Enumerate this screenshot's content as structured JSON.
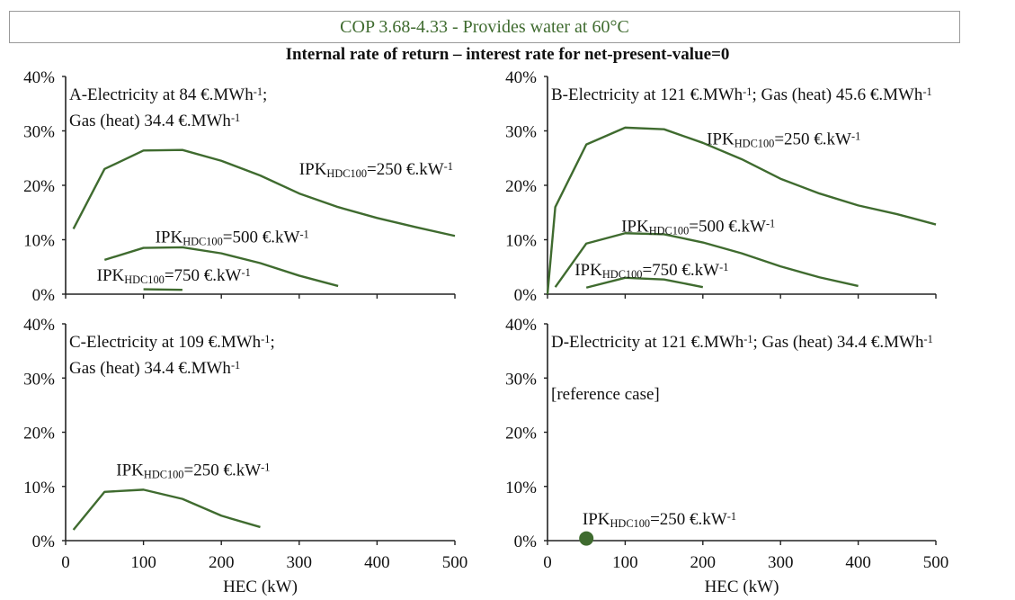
{
  "header": {
    "text": "COP 3.68-4.33 - Provides water at 60°C"
  },
  "title": "Internal rate of return – interest rate for net-present-value=0",
  "colors": {
    "series": "#3f6b2f",
    "axis": "#222222",
    "header_border": "#9a9a9a"
  },
  "chart_data": [
    {
      "type": "line",
      "panel": "A",
      "label_lines": [
        [
          {
            "t": "A-Electricity at 84 €.MWh"
          },
          {
            "t": "-1",
            "sup": true
          },
          {
            "t": ";"
          }
        ],
        [
          {
            "t": "Gas (heat) 34.4 €.MWh"
          },
          {
            "t": "-1",
            "sup": true
          }
        ]
      ],
      "xlabel": "",
      "xlim": [
        0,
        500
      ],
      "ylim": [
        0,
        0.4
      ],
      "yticks": [
        "0%",
        "10%",
        "20%",
        "30%",
        "40%"
      ],
      "xticks": [],
      "series": [
        {
          "name": "IPKHDC100=250 €.kW-1",
          "label_pos": [
            300,
            0.22
          ],
          "label_wrap": true,
          "x": [
            10,
            50,
            100,
            150,
            200,
            250,
            300,
            350,
            400,
            450,
            500
          ],
          "y": [
            0.12,
            0.23,
            0.264,
            0.265,
            0.245,
            0.218,
            0.185,
            0.16,
            0.14,
            0.123,
            0.107
          ]
        },
        {
          "name": "IPKHDC100=500 €.kW-1",
          "label_pos": [
            115,
            0.095
          ],
          "x": [
            50,
            100,
            150,
            200,
            250,
            300,
            350
          ],
          "y": [
            0.063,
            0.085,
            0.086,
            0.075,
            0.057,
            0.034,
            0.015
          ]
        },
        {
          "name": "IPKHDC100=750 €.kW-1",
          "label_pos": [
            40,
            0.025
          ],
          "label_clip": true,
          "x": [
            100,
            150
          ],
          "y": [
            0.009,
            0.008
          ]
        }
      ]
    },
    {
      "type": "line",
      "panel": "B",
      "label_lines": [
        [
          {
            "t": "B-Electricity at 121 €.MWh"
          },
          {
            "t": "-1",
            "sup": true
          },
          {
            "t": "; Gas (heat) 45.6 €.MWh"
          },
          {
            "t": "-1",
            "sup": true
          }
        ]
      ],
      "xlabel": "",
      "xlim": [
        0,
        500
      ],
      "ylim": [
        0,
        0.4
      ],
      "yticks": [
        "0%",
        "10%",
        "20%",
        "30%",
        "40%"
      ],
      "xticks": [],
      "series": [
        {
          "name": "IPKHDC100=250 €.kW-1",
          "label_pos": [
            205,
            0.275
          ],
          "x": [
            0,
            10,
            50,
            100,
            150,
            200,
            250,
            300,
            350,
            400,
            450,
            500
          ],
          "y": [
            0.0,
            0.16,
            0.275,
            0.306,
            0.303,
            0.278,
            0.248,
            0.212,
            0.185,
            0.163,
            0.147,
            0.128
          ]
        },
        {
          "name": "IPKHDC100=500 €.kW-1",
          "label_pos": [
            95,
            0.115
          ],
          "x": [
            10,
            50,
            100,
            150,
            200,
            250,
            300,
            350,
            400
          ],
          "y": [
            0.013,
            0.093,
            0.112,
            0.11,
            0.095,
            0.075,
            0.051,
            0.031,
            0.015
          ]
        },
        {
          "name": "IPKHDC100=750 €.kW-1",
          "label_pos": [
            35,
            0.035
          ],
          "x": [
            50,
            100,
            150,
            200
          ],
          "y": [
            0.012,
            0.03,
            0.027,
            0.013
          ]
        }
      ]
    },
    {
      "type": "line",
      "panel": "C",
      "label_lines": [
        [
          {
            "t": "C-Electricity at 109 €.MWh"
          },
          {
            "t": "-1",
            "sup": true
          },
          {
            "t": ";"
          }
        ],
        [
          {
            "t": "Gas (heat) 34.4 €.MWh"
          },
          {
            "t": "-1",
            "sup": true
          }
        ]
      ],
      "xlabel": "HEC (kW)",
      "xlim": [
        0,
        500
      ],
      "ylim": [
        0,
        0.4
      ],
      "yticks": [
        "0%",
        "10%",
        "20%",
        "30%",
        "40%"
      ],
      "xticks": [
        "0",
        "100",
        "200",
        "300",
        "400",
        "500"
      ],
      "series": [
        {
          "name": "IPKHDC100=250 €.kW-1",
          "label_pos": [
            65,
            0.12
          ],
          "x": [
            10,
            50,
            100,
            150,
            200,
            250
          ],
          "y": [
            0.02,
            0.09,
            0.094,
            0.077,
            0.046,
            0.025
          ]
        }
      ]
    },
    {
      "type": "scatter",
      "panel": "D",
      "label_lines": [
        [
          {
            "t": "D-Electricity at 121 €.MWh"
          },
          {
            "t": "-1",
            "sup": true
          },
          {
            "t": "; Gas (heat) 34.4 €.MWh"
          },
          {
            "t": "-1",
            "sup": true
          }
        ],
        [],
        [
          {
            "t": "[reference case]"
          }
        ]
      ],
      "xlabel": "HEC (kW)",
      "xlim": [
        0,
        500
      ],
      "ylim": [
        0,
        0.4
      ],
      "yticks": [
        "0%",
        "10%",
        "20%",
        "30%",
        "40%"
      ],
      "xticks": [
        "0",
        "100",
        "200",
        "300",
        "400",
        "500"
      ],
      "series": [
        {
          "name": "IPKHDC100=250 €.kW-1",
          "label_pos": [
            45,
            0.03
          ],
          "x": [
            50
          ],
          "y": [
            0.004
          ]
        }
      ]
    }
  ]
}
